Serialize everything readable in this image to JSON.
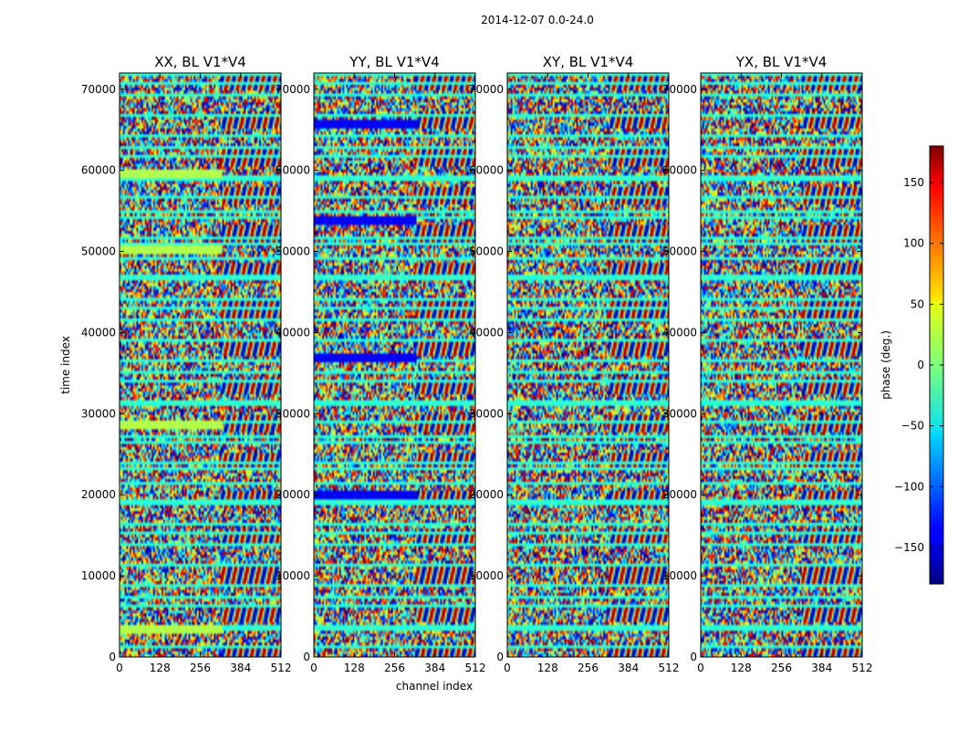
{
  "chart_data": {
    "type": "heatmap",
    "suptitle": "2014-12-07 0.0-24.0",
    "panels": [
      {
        "title": "XX, BL V1*V4",
        "band_hue": 0.55,
        "band_strength": 1.0
      },
      {
        "title": "YY, BL V1*V4",
        "band_hue": 0.12,
        "band_strength": 1.0
      },
      {
        "title": "XY, BL V1*V4",
        "band_hue": 0.36,
        "band_strength": 0.4
      },
      {
        "title": "YX, BL V1*V4",
        "band_hue": 0.36,
        "band_strength": 0.4
      }
    ],
    "xlabel": "channel index",
    "ylabel": "time index",
    "xlim": [
      0,
      512
    ],
    "ylim": [
      0,
      72000
    ],
    "xticks": [
      0,
      128,
      256,
      384,
      512
    ],
    "xtick_labels": [
      "0",
      "128",
      "256",
      "384",
      "512"
    ],
    "yticks": [
      0,
      10000,
      20000,
      30000,
      40000,
      50000,
      60000,
      70000
    ],
    "ytick_labels": [
      "0",
      "10000",
      "20000",
      "30000",
      "40000",
      "50000",
      "60000",
      "70000"
    ],
    "colorbar": {
      "label": "phase (deg.)",
      "range": [
        -180,
        180
      ],
      "ticks": [
        -150,
        -100,
        -50,
        0,
        50,
        100,
        150
      ],
      "tick_labels": [
        "−150",
        "−100",
        "−50",
        "0",
        "50",
        "100",
        "150"
      ],
      "colormap": "jet"
    },
    "flagged_bands_time_index": [
      3500,
      20300,
      28800,
      37200,
      50300,
      54000,
      59800,
      65800
    ]
  }
}
